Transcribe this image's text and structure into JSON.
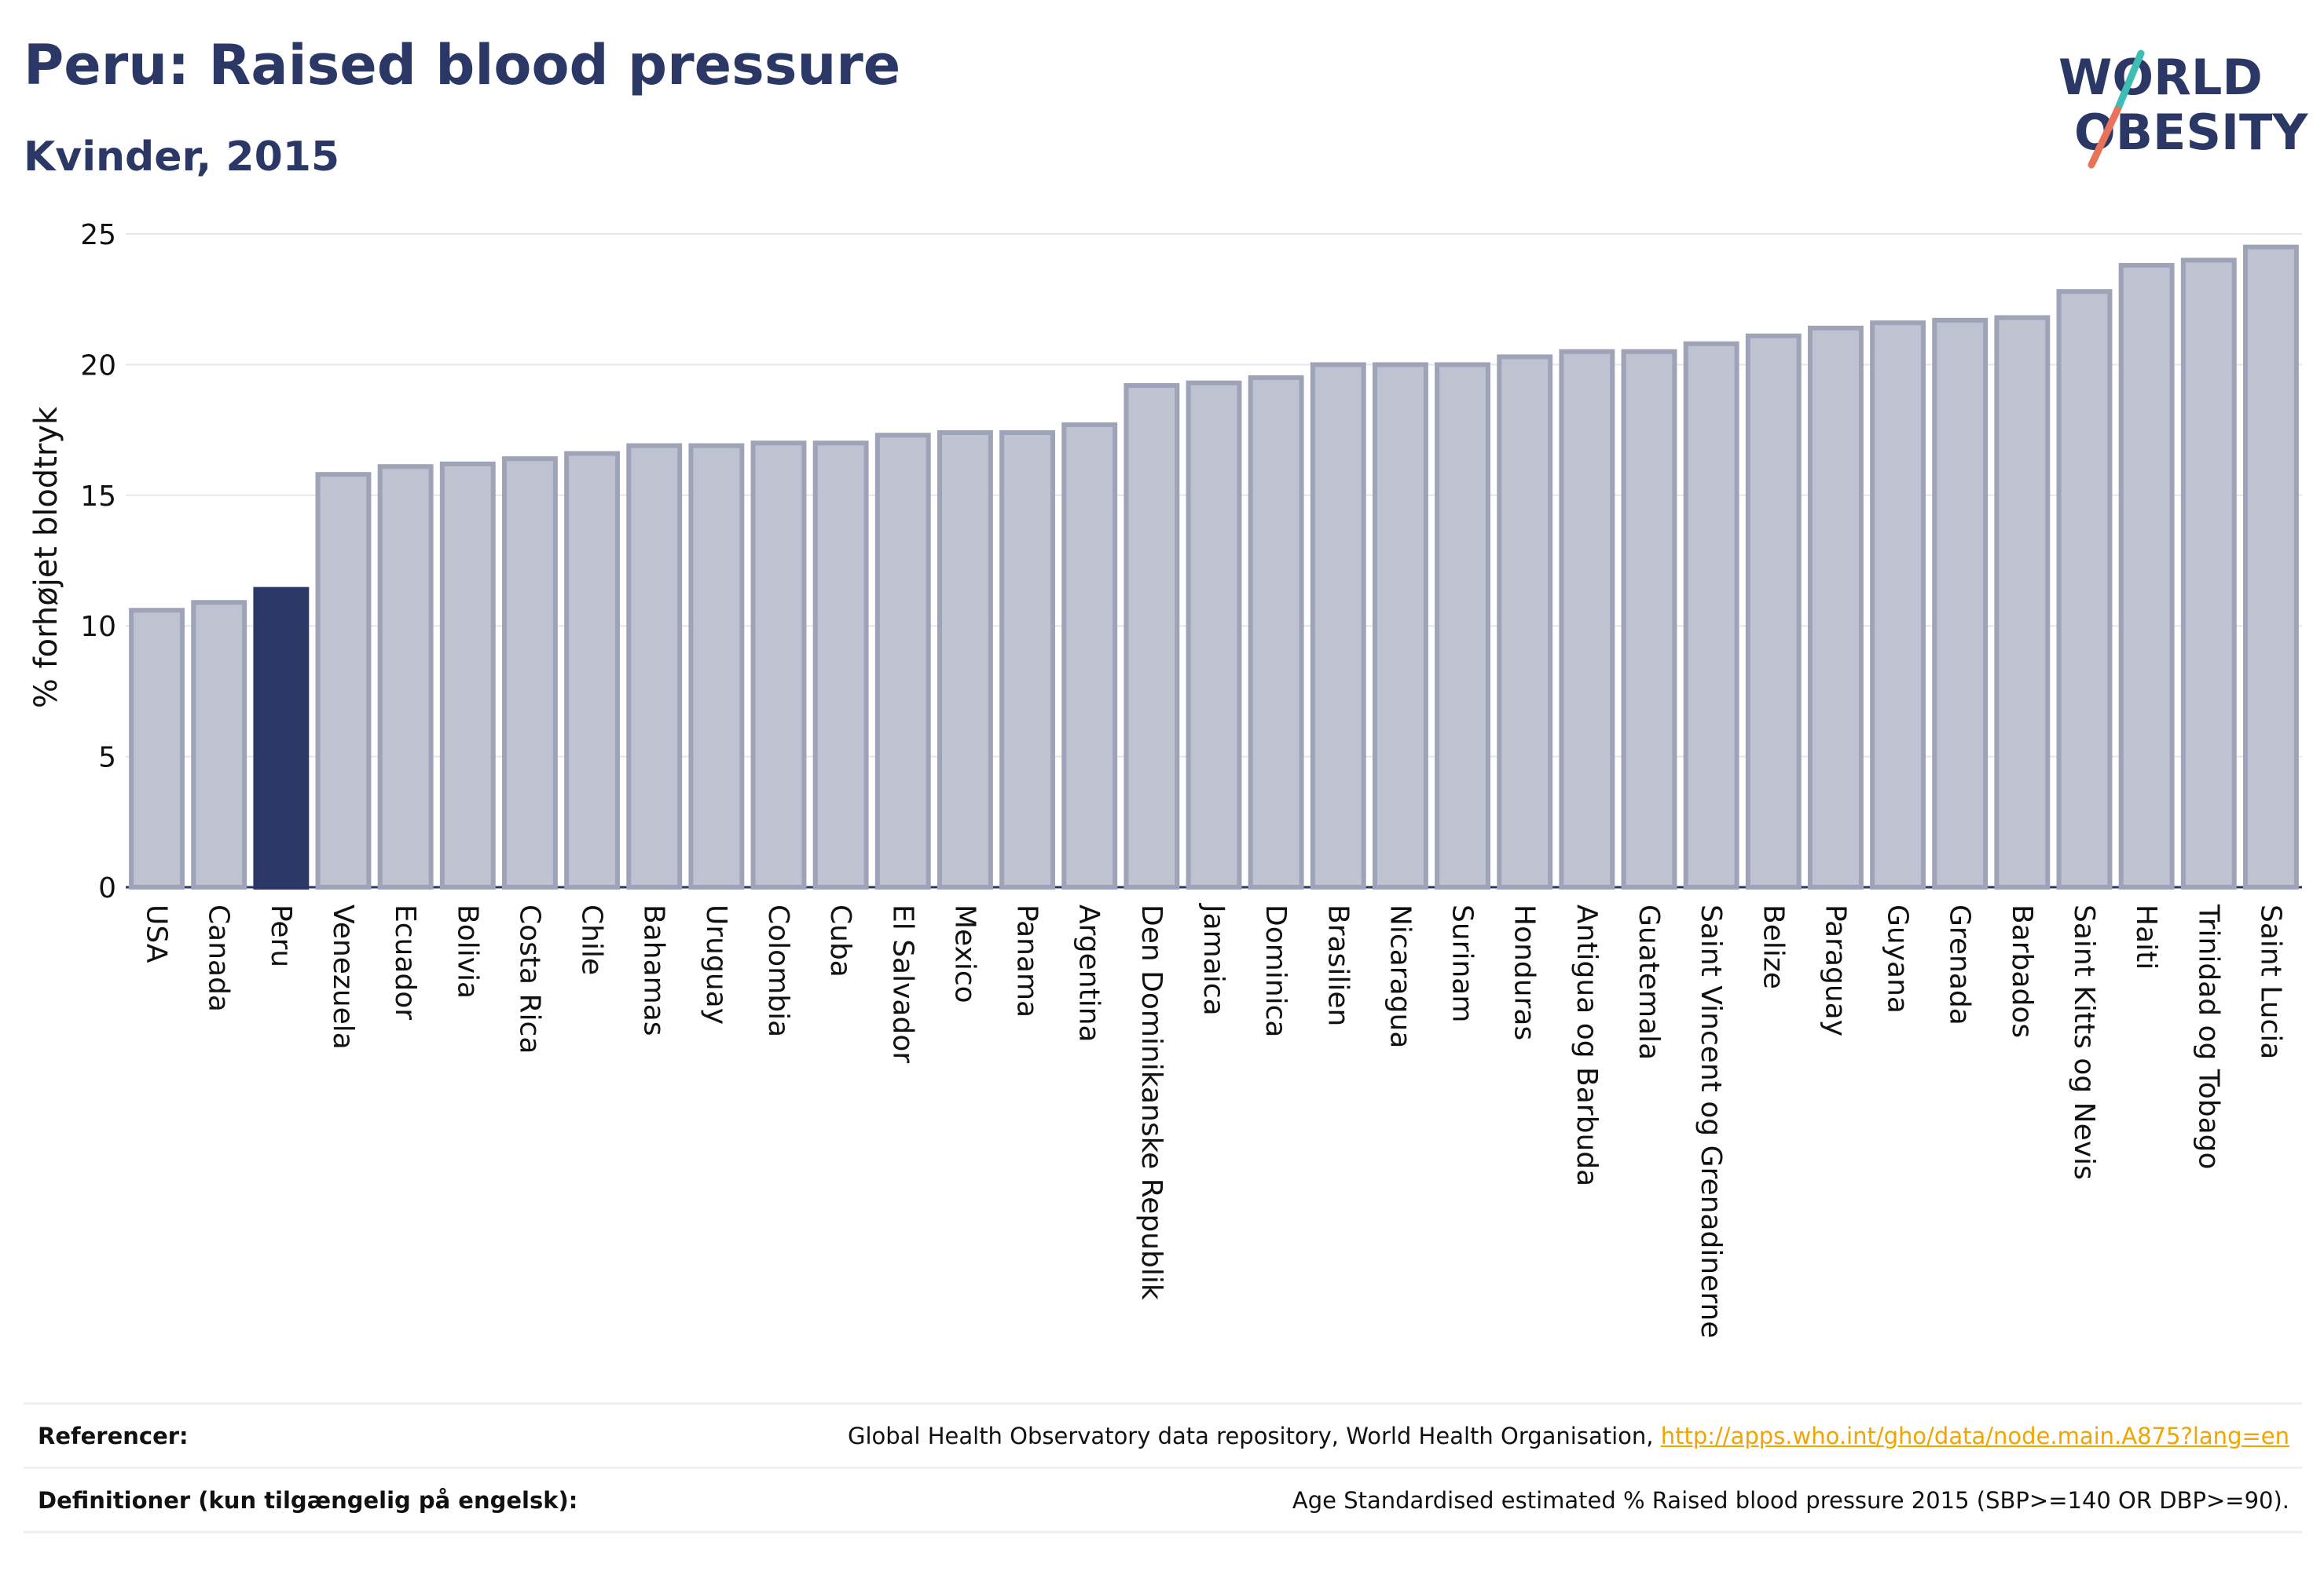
{
  "header": {
    "title": "Peru: Raised blood pressure",
    "subtitle": "Kvinder, 2015"
  },
  "logo": {
    "line1": "WORLD",
    "line2": "OBESITY",
    "colors": {
      "text": "#2b3866",
      "slash_teal": "#3dbdb4",
      "slash_coral": "#e8735a"
    }
  },
  "chart_data": {
    "type": "bar",
    "ylabel": "% forhøjet blodtryk",
    "xlabel": "",
    "ylim": [
      0,
      25
    ],
    "yticks": [
      0,
      5,
      10,
      15,
      20,
      25
    ],
    "grid": true,
    "highlight": "Peru",
    "colors": {
      "bar": "#bfc2d0",
      "bar_border": "#9ea3b8",
      "highlight": "#2b3866"
    },
    "categories": [
      "USA",
      "Canada",
      "Peru",
      "Venezuela",
      "Ecuador",
      "Bolivia",
      "Costa Rica",
      "Chile",
      "Bahamas",
      "Uruguay",
      "Colombia",
      "Cuba",
      "El Salvador",
      "Mexico",
      "Panama",
      "Argentina",
      "Den Dominikanske Republik",
      "Jamaica",
      "Dominica",
      "Brasilien",
      "Nicaragua",
      "Surinam",
      "Honduras",
      "Antigua og Barbuda",
      "Guatemala",
      "Saint Vincent og Grenadinerne",
      "Belize",
      "Paraguay",
      "Guyana",
      "Grenada",
      "Barbados",
      "Saint Kitts og Nevis",
      "Haiti",
      "Trinidad og Tobago",
      "Saint Lucia"
    ],
    "values": [
      10.6,
      10.9,
      11.4,
      15.8,
      16.1,
      16.2,
      16.4,
      16.6,
      16.9,
      16.9,
      17.0,
      17.0,
      17.3,
      17.4,
      17.4,
      17.7,
      19.2,
      19.3,
      19.5,
      20.0,
      20.0,
      20.0,
      20.3,
      20.5,
      20.5,
      20.8,
      21.1,
      21.4,
      21.6,
      21.7,
      21.8,
      22.8,
      23.8,
      24.0,
      24.5
    ]
  },
  "footer": {
    "references_label": "Referencer:",
    "references_text": "Global Health Observatory data repository, World Health Organisation, ",
    "references_link": "http://apps.who.int/gho/data/node.main.A875?lang=en",
    "definitions_label": "Definitioner (kun tilgængelig på engelsk):",
    "definitions_text": "Age Standardised estimated % Raised blood pressure 2015 (SBP>=140 OR DBP>=90)."
  }
}
